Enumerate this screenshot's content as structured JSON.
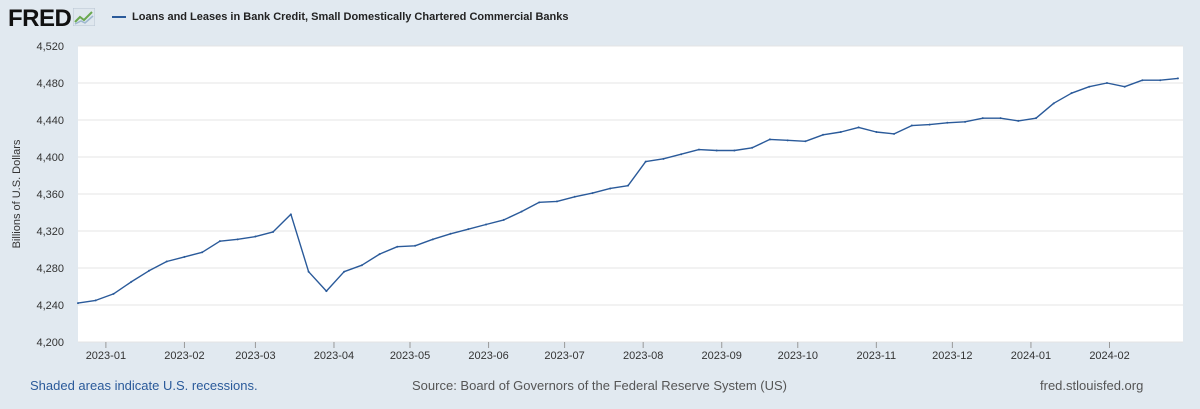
{
  "header": {
    "logo_text": "FRED",
    "legend_label": "Loans and Leases in Bank Credit, Small Domestically Chartered Commercial Banks"
  },
  "colors": {
    "series": "#2a5a9a",
    "background": "#e1e9f0",
    "plot_background": "#ffffff",
    "grid": "#e4e4e4",
    "link": "#2a5a9a"
  },
  "icons": {
    "logo_chart": "chart-trend-icon"
  },
  "footer": {
    "recession_note": "Shaded areas indicate U.S. recessions.",
    "source": "Source: Board of Governors of the Federal Reserve System (US)",
    "site": "fred.stlouisfed.org"
  },
  "chart_data": {
    "type": "line",
    "ylabel": "Billions of U.S. Dollars",
    "xlabel": "",
    "ylim": [
      4200,
      4520
    ],
    "yticks": [
      4200,
      4240,
      4280,
      4320,
      4360,
      4400,
      4440,
      4480,
      4520
    ],
    "ytick_labels": [
      "4,200",
      "4,240",
      "4,280",
      "4,320",
      "4,360",
      "4,400",
      "4,440",
      "4,480",
      "4,520"
    ],
    "xlim": [
      "2022-12-21",
      "2024-03-01"
    ],
    "xticks": [
      "2023-01-01",
      "2023-02-01",
      "2023-03-01",
      "2023-04-01",
      "2023-05-01",
      "2023-06-01",
      "2023-07-01",
      "2023-08-01",
      "2023-09-01",
      "2023-10-01",
      "2023-11-01",
      "2023-12-01",
      "2024-01-01",
      "2024-02-01"
    ],
    "xtick_labels": [
      "2023-01",
      "2023-02",
      "2023-03",
      "2023-04",
      "2023-05",
      "2023-06",
      "2023-07",
      "2023-08",
      "2023-09",
      "2023-10",
      "2023-11",
      "2023-12",
      "2024-01",
      "2024-02"
    ],
    "grid": true,
    "legend_position": "top-left",
    "series": [
      {
        "name": "Loans and Leases in Bank Credit, Small Domestically Chartered Commercial Banks",
        "x": [
          "2022-12-21",
          "2022-12-28",
          "2023-01-04",
          "2023-01-11",
          "2023-01-18",
          "2023-01-25",
          "2023-02-01",
          "2023-02-08",
          "2023-02-15",
          "2023-02-22",
          "2023-03-01",
          "2023-03-08",
          "2023-03-15",
          "2023-03-22",
          "2023-03-29",
          "2023-04-05",
          "2023-04-12",
          "2023-04-19",
          "2023-04-26",
          "2023-05-03",
          "2023-05-10",
          "2023-05-17",
          "2023-05-24",
          "2023-05-31",
          "2023-06-07",
          "2023-06-14",
          "2023-06-21",
          "2023-06-28",
          "2023-07-05",
          "2023-07-12",
          "2023-07-19",
          "2023-07-26",
          "2023-08-02",
          "2023-08-09",
          "2023-08-16",
          "2023-08-23",
          "2023-08-30",
          "2023-09-06",
          "2023-09-13",
          "2023-09-20",
          "2023-09-27",
          "2023-10-04",
          "2023-10-11",
          "2023-10-18",
          "2023-10-25",
          "2023-11-01",
          "2023-11-08",
          "2023-11-15",
          "2023-11-22",
          "2023-11-29",
          "2023-12-06",
          "2023-12-13",
          "2023-12-20",
          "2023-12-27",
          "2024-01-03",
          "2024-01-10",
          "2024-01-17",
          "2024-01-24",
          "2024-01-31",
          "2024-02-07",
          "2024-02-14",
          "2024-02-21",
          "2024-02-28"
        ],
        "y": [
          4242,
          4245,
          4252,
          4265,
          4277,
          4287,
          4292,
          4297,
          4309,
          4311,
          4314,
          4319,
          4338,
          4276,
          4255,
          4276,
          4283,
          4295,
          4303,
          4304,
          4311,
          4317,
          4322,
          4327,
          4332,
          4341,
          4351,
          4352,
          4357,
          4361,
          4366,
          4369,
          4395,
          4398,
          4403,
          4408,
          4407,
          4407,
          4410,
          4419,
          4418,
          4417,
          4424,
          4427,
          4432,
          4427,
          4425,
          4434,
          4435,
          4437,
          4438,
          4442,
          4442,
          4439,
          4442,
          4458,
          4469,
          4476,
          4480,
          4476,
          4483,
          4483,
          4485
        ]
      }
    ]
  }
}
